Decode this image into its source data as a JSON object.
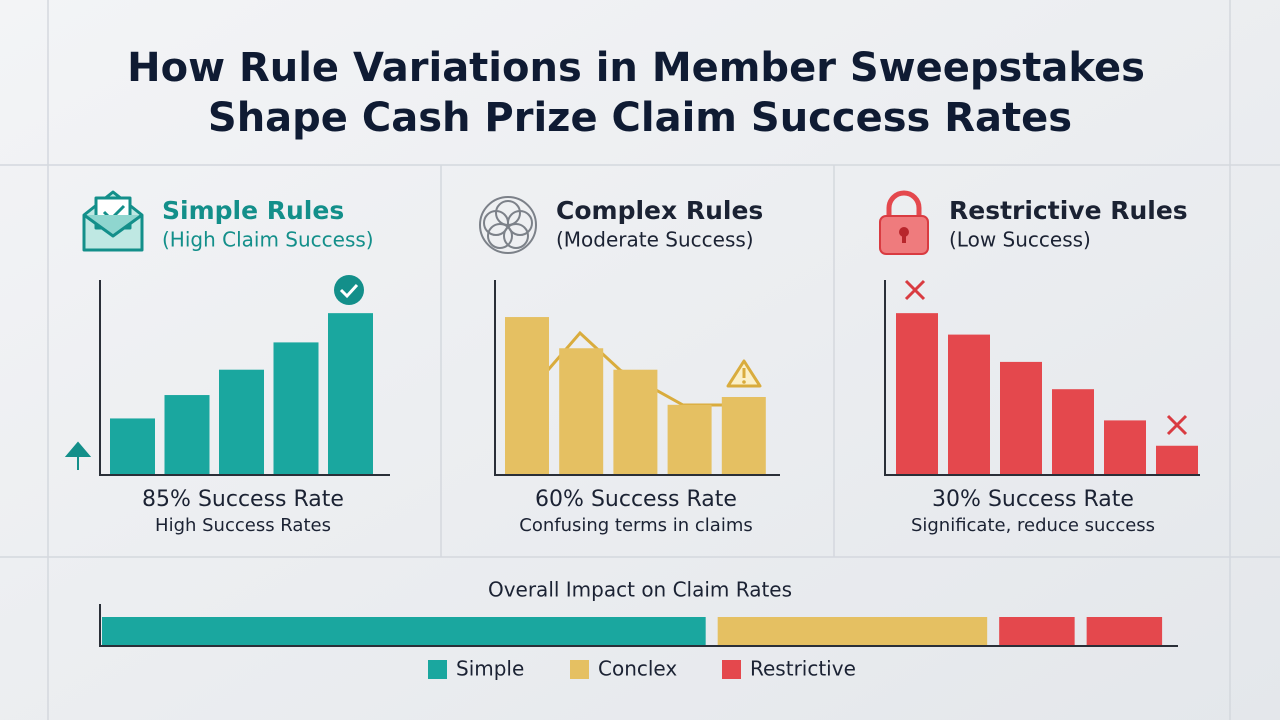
{
  "title_lines": [
    "How Rule Variations in Member Sweepstakes",
    "Shape Cash Prize Claim Success Rates"
  ],
  "chart_data": [
    {
      "type": "bar",
      "title": "Simple Rules",
      "subtitle": "(High Claim Success)",
      "color": "#1aa79f",
      "values": [
        29,
        41,
        54,
        68,
        83
      ],
      "ylim": [
        0,
        100
      ],
      "rate_label": "85% Success Rate",
      "caption": "High Success Rates"
    },
    {
      "type": "bar",
      "title": "Complex Rules",
      "subtitle": "(Moderate Success)",
      "color": "#e5c062",
      "values": [
        81,
        65,
        54,
        36,
        40
      ],
      "ylim": [
        0,
        100
      ],
      "rate_label": "60% Success Rate",
      "caption": "Confusing terms in claims"
    },
    {
      "type": "bar",
      "title": "Restrictive Rules",
      "subtitle": "(Low Success)",
      "color": "#e4484d",
      "values": [
        83,
        72,
        58,
        44,
        28,
        15
      ],
      "ylim": [
        0,
        100
      ],
      "rate_label": "30% Success Rate",
      "caption": "Significate, reduce success"
    },
    {
      "type": "stacked_bar",
      "title": "Overall Impact on Claim Rates",
      "xlim": [
        0,
        100
      ],
      "series": [
        {
          "name": "Simple",
          "color": "#1aa79f",
          "values": [
            56,
            null,
            null,
            null
          ]
        },
        {
          "name": "Conclex",
          "color": "#e5c062",
          "values": [
            null,
            25,
            null,
            null
          ]
        },
        {
          "name": "Restrictive",
          "color": "#e4484d",
          "values": [
            null,
            null,
            7,
            7
          ]
        }
      ]
    }
  ]
}
